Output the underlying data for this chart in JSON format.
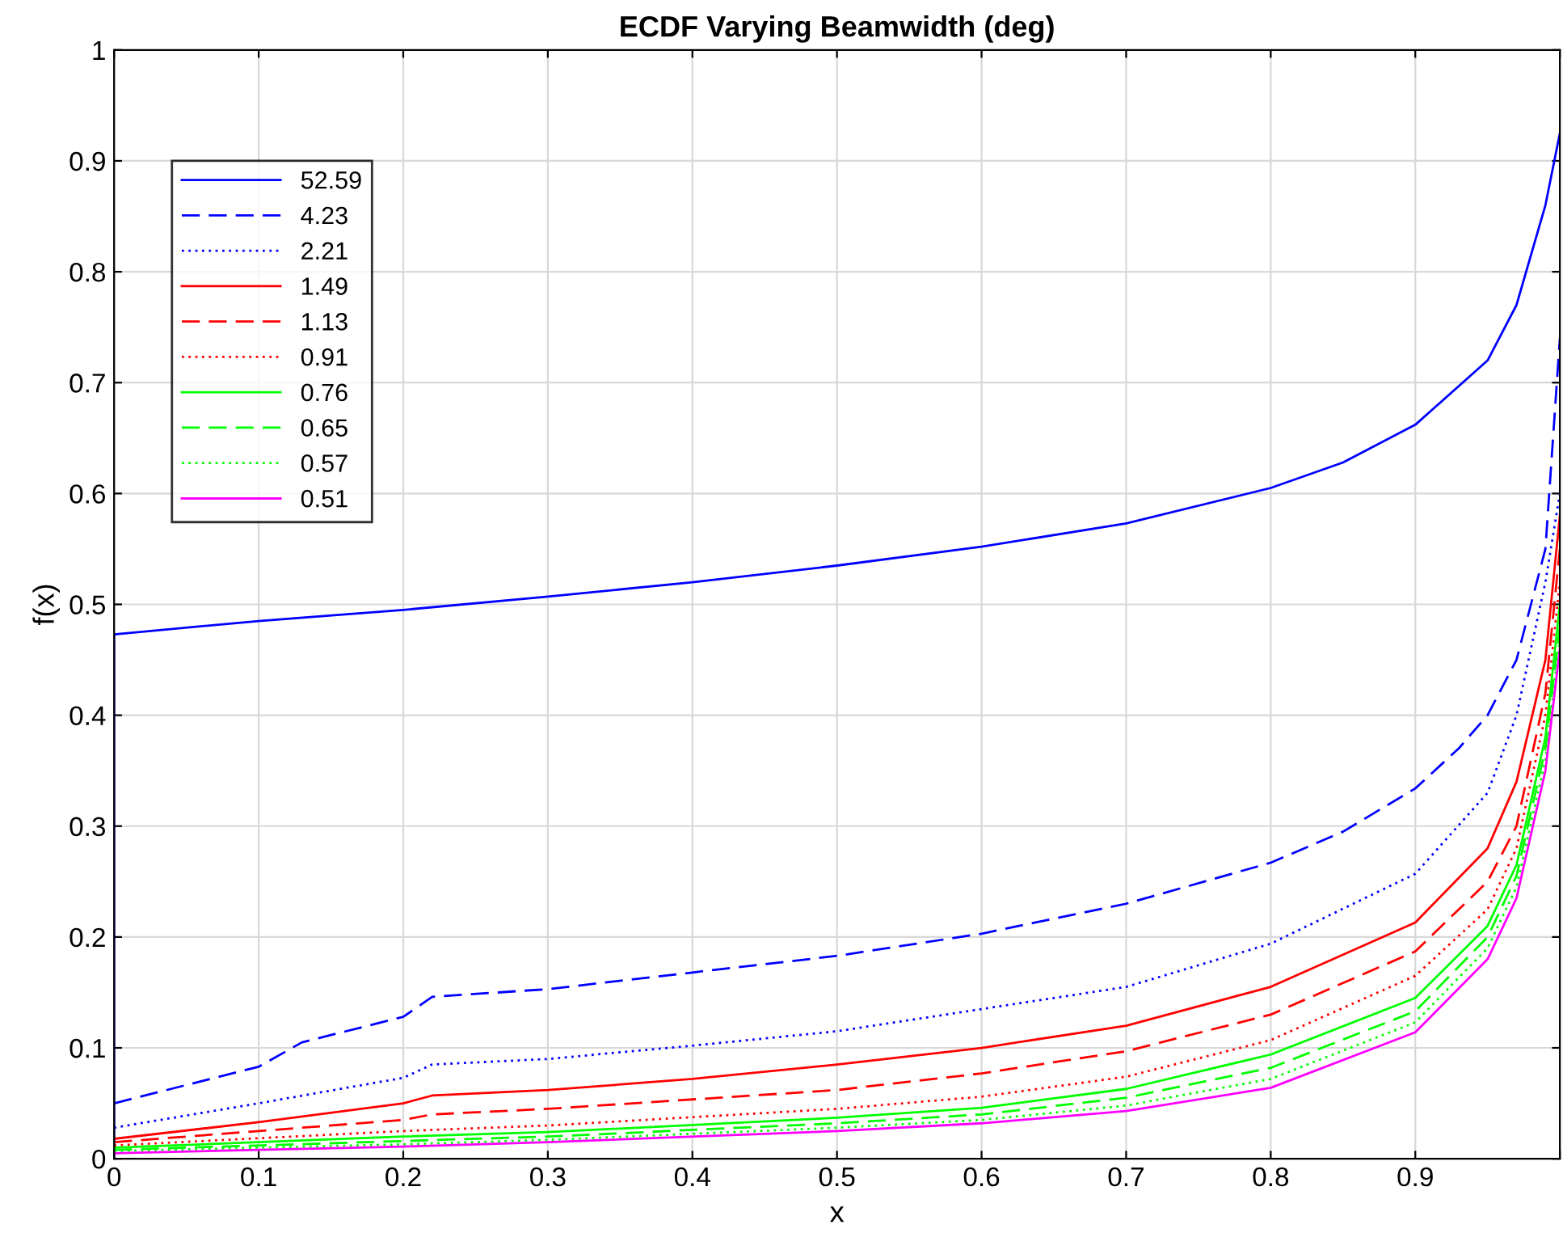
{
  "chart_data": {
    "type": "line",
    "title": "ECDF Varying Beamwidth (deg)",
    "xlabel": "x",
    "ylabel": "f(x)",
    "xlim": [
      0,
      1
    ],
    "ylim": [
      0,
      1
    ],
    "xticks": [
      0,
      0.1,
      0.2,
      0.3,
      0.4,
      0.5,
      0.6,
      0.7,
      0.8,
      0.9,
      {
        "value": 1,
        "label": null
      }
    ],
    "yticks": [
      0,
      0.1,
      0.2,
      0.3,
      0.4,
      0.5,
      0.6,
      0.7,
      0.8,
      0.9,
      1
    ],
    "grid": true,
    "legend": "top left",
    "marker": "none",
    "series": [
      {
        "name": "52.59",
        "color": "#0000ff",
        "line_style": "solid",
        "x": [
          0,
          0,
          0.1,
          0.2,
          0.3,
          0.4,
          0.5,
          0.6,
          0.7,
          0.8,
          0.85,
          0.9,
          0.95,
          0.97,
          0.99,
          1.0
        ],
        "values": [
          0,
          0.473,
          0.485,
          0.495,
          0.507,
          0.52,
          0.535,
          0.552,
          0.573,
          0.605,
          0.628,
          0.662,
          0.72,
          0.77,
          0.86,
          0.925
        ]
      },
      {
        "name": "4.23",
        "color": "#0000ff",
        "line_style": "dashed",
        "x": [
          0,
          0.1,
          0.13,
          0.2,
          0.22,
          0.3,
          0.4,
          0.5,
          0.6,
          0.7,
          0.8,
          0.85,
          0.9,
          0.93,
          0.95,
          0.97,
          0.99,
          1.0
        ],
        "values": [
          0.05,
          0.083,
          0.105,
          0.128,
          0.146,
          0.153,
          0.168,
          0.183,
          0.203,
          0.23,
          0.267,
          0.295,
          0.334,
          0.37,
          0.4,
          0.45,
          0.55,
          0.74
        ]
      },
      {
        "name": "2.21",
        "color": "#0000ff",
        "line_style": "dotted",
        "x": [
          0,
          0.1,
          0.2,
          0.22,
          0.3,
          0.4,
          0.5,
          0.6,
          0.7,
          0.8,
          0.9,
          0.95,
          0.97,
          0.99,
          1.0
        ],
        "values": [
          0.028,
          0.05,
          0.073,
          0.085,
          0.09,
          0.102,
          0.115,
          0.135,
          0.155,
          0.194,
          0.257,
          0.33,
          0.4,
          0.52,
          0.6
        ]
      },
      {
        "name": "1.49",
        "color": "#ff0000",
        "line_style": "solid",
        "x": [
          0,
          0.1,
          0.2,
          0.22,
          0.3,
          0.4,
          0.5,
          0.6,
          0.7,
          0.8,
          0.9,
          0.95,
          0.97,
          0.99,
          1.0
        ],
        "values": [
          0.018,
          0.033,
          0.05,
          0.057,
          0.062,
          0.072,
          0.085,
          0.1,
          0.12,
          0.155,
          0.213,
          0.28,
          0.34,
          0.45,
          0.58
        ]
      },
      {
        "name": "1.13",
        "color": "#ff0000",
        "line_style": "dashed",
        "x": [
          0,
          0.1,
          0.2,
          0.22,
          0.3,
          0.5,
          0.6,
          0.7,
          0.8,
          0.9,
          0.95,
          0.97,
          0.99,
          1.0
        ],
        "values": [
          0.015,
          0.025,
          0.035,
          0.04,
          0.045,
          0.062,
          0.077,
          0.097,
          0.13,
          0.187,
          0.25,
          0.3,
          0.42,
          0.55
        ]
      },
      {
        "name": "0.91",
        "color": "#ff0000",
        "line_style": "dotted",
        "x": [
          0,
          0.2,
          0.3,
          0.5,
          0.6,
          0.7,
          0.8,
          0.9,
          0.95,
          0.97,
          0.99,
          1.0
        ],
        "values": [
          0.012,
          0.025,
          0.03,
          0.045,
          0.056,
          0.074,
          0.107,
          0.165,
          0.225,
          0.28,
          0.4,
          0.52
        ]
      },
      {
        "name": "0.76",
        "color": "#00ff00",
        "line_style": "solid",
        "x": [
          0,
          0.2,
          0.3,
          0.5,
          0.6,
          0.7,
          0.8,
          0.9,
          0.95,
          0.97,
          0.99,
          1.0
        ],
        "values": [
          0.01,
          0.02,
          0.024,
          0.037,
          0.046,
          0.063,
          0.094,
          0.145,
          0.21,
          0.265,
          0.38,
          0.5
        ]
      },
      {
        "name": "0.65",
        "color": "#00ff00",
        "line_style": "dashed",
        "x": [
          0,
          0.2,
          0.3,
          0.5,
          0.6,
          0.7,
          0.8,
          0.9,
          0.95,
          0.97,
          0.99,
          1.0
        ],
        "values": [
          0.008,
          0.016,
          0.02,
          0.032,
          0.04,
          0.055,
          0.082,
          0.133,
          0.2,
          0.255,
          0.37,
          0.48
        ]
      },
      {
        "name": "0.57",
        "color": "#00ff00",
        "line_style": "dotted",
        "x": [
          0,
          0.2,
          0.3,
          0.5,
          0.6,
          0.7,
          0.8,
          0.9,
          0.95,
          0.97,
          0.99,
          1.0
        ],
        "values": [
          0.007,
          0.013,
          0.017,
          0.028,
          0.035,
          0.048,
          0.072,
          0.123,
          0.19,
          0.245,
          0.36,
          0.47
        ]
      },
      {
        "name": "0.51",
        "color": "#ff00ff",
        "line_style": "solid",
        "x": [
          0,
          0.2,
          0.3,
          0.5,
          0.6,
          0.7,
          0.8,
          0.9,
          0.95,
          0.97,
          0.99,
          1.0
        ],
        "values": [
          0.005,
          0.011,
          0.015,
          0.025,
          0.032,
          0.043,
          0.064,
          0.114,
          0.18,
          0.235,
          0.35,
          0.46
        ]
      }
    ]
  }
}
